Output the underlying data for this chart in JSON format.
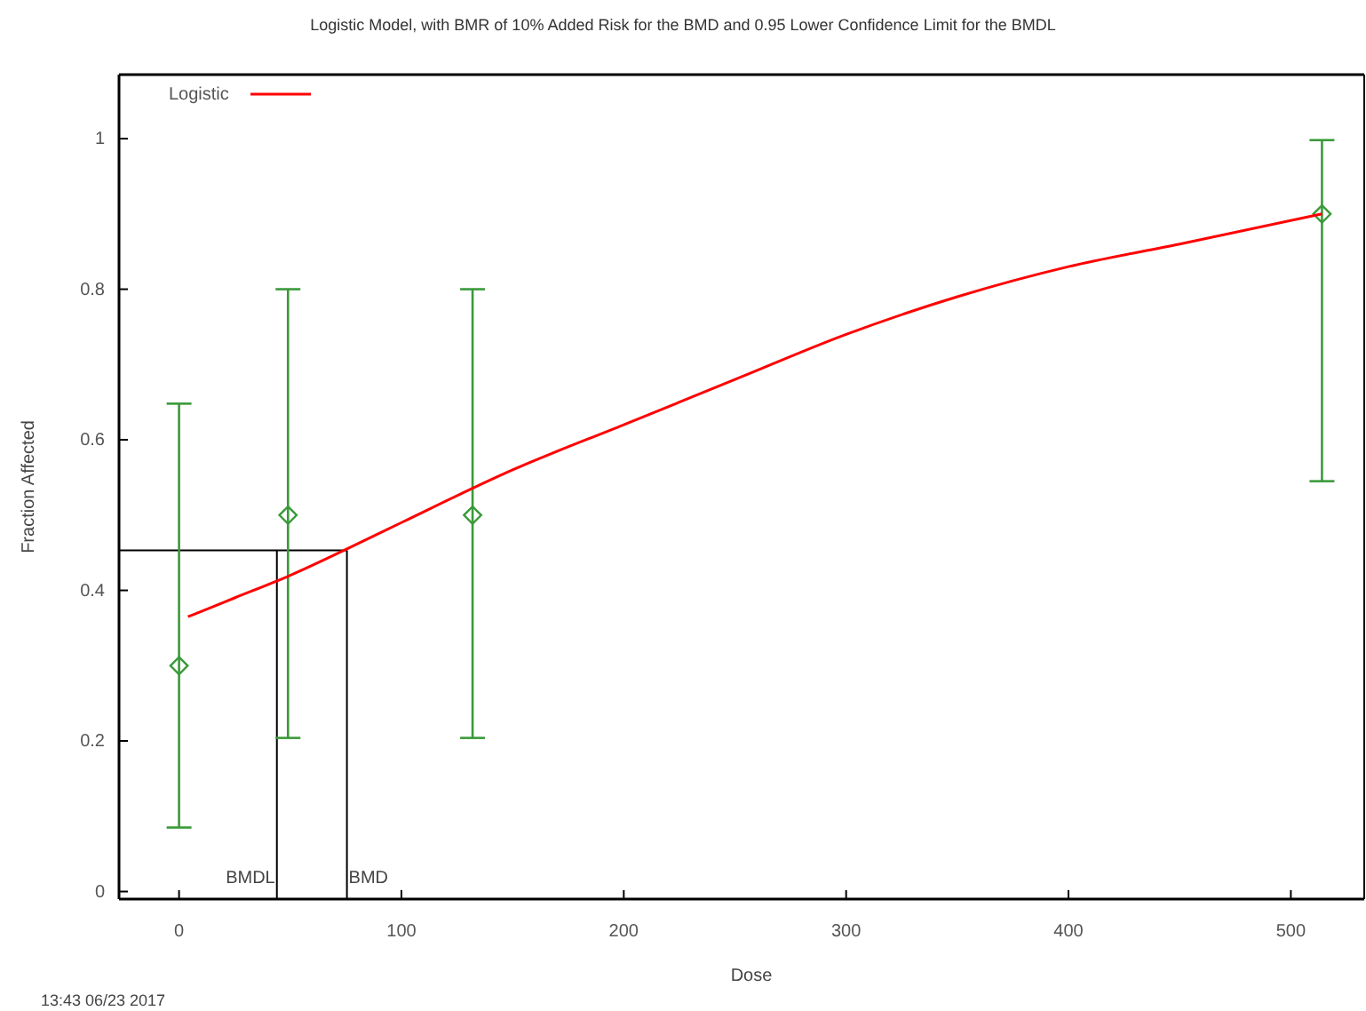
{
  "chart_data": {
    "type": "scatter",
    "title": "Logistic Model, with BMR of 10% Added Risk for the BMD and 0.95 Lower Confidence Limit for the BMDL",
    "xlabel": "Dose",
    "ylabel": "Fraction Affected",
    "xlim": [
      -27,
      533
    ],
    "ylim": [
      -0.01,
      1.085
    ],
    "xticks": [
      0,
      100,
      200,
      300,
      400,
      500
    ],
    "yticks": [
      0,
      0.2,
      0.4,
      0.6,
      0.8,
      1
    ],
    "series": [
      {
        "color": "#3a9a3a",
        "marker": "diamond",
        "x": [
          0,
          49,
          132,
          514
        ],
        "values": [
          0.3,
          0.5,
          0.5,
          0.9
        ],
        "errors": [
          [
            0.085,
            0.648
          ],
          [
            0.204,
            0.8
          ],
          [
            0.204,
            0.8
          ],
          [
            0.545,
            0.998
          ]
        ]
      },
      {
        "type": "line",
        "name": "Logistic",
        "color": "#ff0000",
        "x": [
          4,
          25,
          50,
          75.5,
          100,
          150,
          200,
          250,
          300,
          350,
          400,
          450,
          514
        ],
        "values": [
          0.365,
          0.39,
          0.42,
          0.455,
          0.49,
          0.56,
          0.62,
          0.68,
          0.74,
          0.79,
          0.83,
          0.86,
          0.9
        ]
      }
    ],
    "ref_lines": [
      {
        "axis": "y",
        "value": 0.453,
        "color": "#000000"
      },
      {
        "axis": "x",
        "value": 44,
        "label": "BMDL",
        "color": "#000000"
      },
      {
        "axis": "x",
        "value": 75.5,
        "label": "BMD",
        "color": "#000000"
      }
    ],
    "legend": "top left",
    "grid": false,
    "annotations": [
      "13:43 06/23 2017"
    ]
  }
}
